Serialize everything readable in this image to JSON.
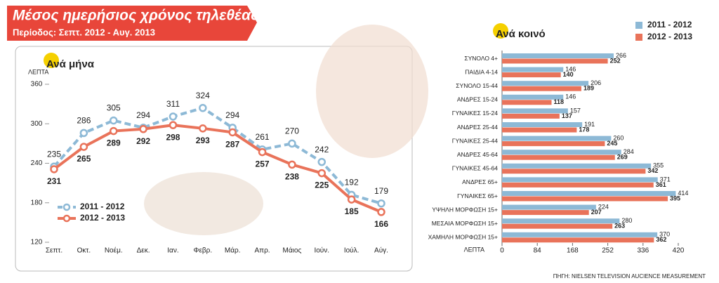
{
  "header": {
    "title": "Μέσος ημερήσιος χρόνος τηλεθέασης",
    "subtitle": "Περίοδος: Σεπτ. 2012 - Αυγ. 2013"
  },
  "chart_data": [
    {
      "type": "line",
      "title": "Ανά μήνα",
      "y_label": "ΛΕΠΤΑ",
      "categories": [
        "Σεπτ.",
        "Οκτ.",
        "Νοέμ.",
        "Δεκ.",
        "Ιαν.",
        "Φεβρ.",
        "Μάρ.",
        "Απρ.",
        "Μάιος",
        "Ιούν.",
        "Ιούλ.",
        "Αύγ."
      ],
      "series": [
        {
          "name": "2011 - 2012",
          "color": "#8db9d6",
          "dashed": true,
          "values": [
            235,
            286,
            305,
            294,
            311,
            324,
            294,
            261,
            270,
            242,
            192,
            179
          ]
        },
        {
          "name": "2012 - 2013",
          "color": "#e9735a",
          "dashed": false,
          "values": [
            231,
            265,
            289,
            292,
            298,
            293,
            287,
            257,
            238,
            225,
            185,
            166
          ]
        }
      ],
      "ylim": [
        120,
        360
      ],
      "yticks": [
        120,
        180,
        240,
        300,
        360
      ],
      "grid": false,
      "legend": "lower left"
    },
    {
      "type": "hbar",
      "title": "Ανά κοινό",
      "x_label": "ΛΕΠΤΑ",
      "categories": [
        "ΣΥΝΟΛΟ 4+",
        "ΠΑΙΔΙΑ 4-14",
        "ΣΥΝΟΛΟ 15-44",
        "ΑΝΔΡΕΣ 15-24",
        "ΓΥΝΑΙΚΕΣ 15-24",
        "ΑΝΔΡΕΣ 25-44",
        "ΓΥΝΑΙΚΕΣ 25-44",
        "ΑΝΔΡΕΣ 45-64",
        "ΓΥΝΑΙΚΕΣ 45-64",
        "ΑΝΔΡΕΣ 65+",
        "ΓΥΝΑΙΚΕΣ 65+",
        "ΥΨΗΛΗ ΜΟΡΦΩΣΗ 15+",
        "ΜΕΣΑΙΑ ΜΟΡΦΩΣΗ 15+",
        "ΧΑΜΗΛΗ ΜΟΡΦΩΣΗ 15+"
      ],
      "series": [
        {
          "name": "2011 - 2012",
          "color": "#8db9d6",
          "values": [
            266,
            146,
            206,
            146,
            157,
            191,
            260,
            284,
            355,
            371,
            414,
            224,
            280,
            370
          ]
        },
        {
          "name": "2012 - 2013",
          "color": "#e9735a",
          "values": [
            252,
            140,
            189,
            118,
            137,
            178,
            245,
            269,
            342,
            361,
            395,
            207,
            263,
            362
          ]
        }
      ],
      "xlim": [
        0,
        420
      ],
      "xticks": [
        0,
        84,
        168,
        252,
        336,
        420
      ],
      "grid": false,
      "legend": "upper right"
    }
  ],
  "source": "ΠΗΓΗ: NIELSEN TELEVISION AUCIENCE MEASUREMENT"
}
